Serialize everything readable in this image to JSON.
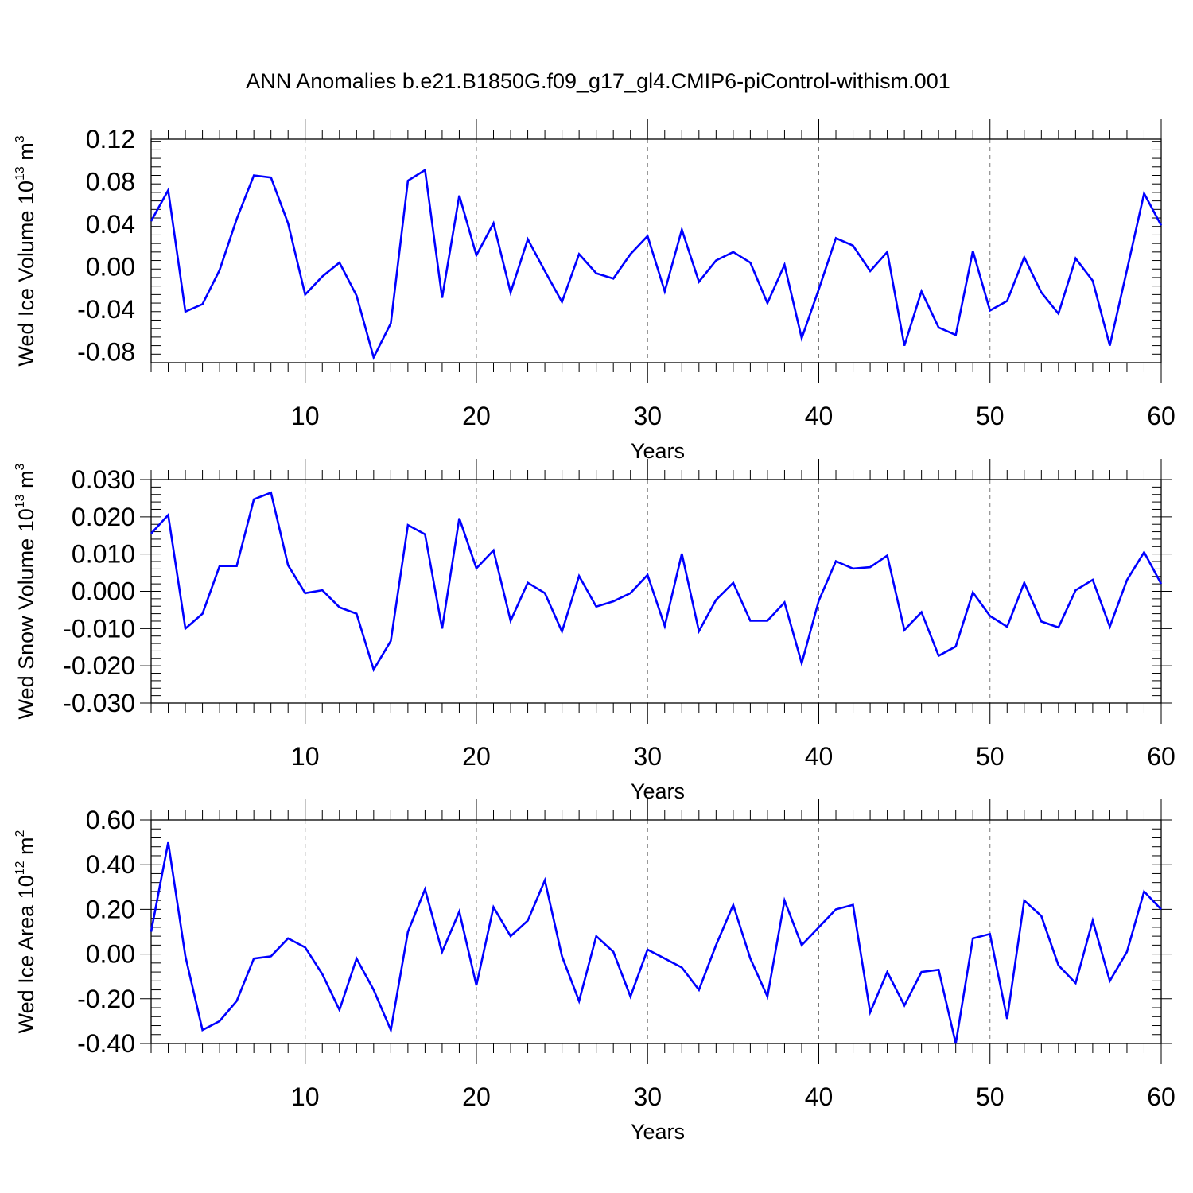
{
  "title": "ANN Anomalies b.e21.B1850G.f09_g17_gl4.CMIP6-piControl-withism.001",
  "line_color": "#0000ff",
  "chart_data": [
    {
      "type": "line",
      "xlabel": "Years",
      "ylabel": {
        "text": "Wed Ice Volume 10",
        "exp": "13",
        "unit": " m",
        "unit_exp": "3"
      },
      "xlim": [
        1,
        60
      ],
      "ylim": [
        -0.09,
        0.12
      ],
      "xticks": [
        10,
        20,
        30,
        40,
        50,
        60
      ],
      "xtick_labels": [
        "10",
        "20",
        "30",
        "40",
        "50",
        "60"
      ],
      "yticks": [
        -0.08,
        -0.04,
        0.0,
        0.04,
        0.08,
        0.12
      ],
      "ytick_labels": [
        "-0.08",
        "-0.04",
        "0.00",
        "0.04",
        "0.08",
        "0.12"
      ],
      "grid": "vertical dashed at x ticks",
      "series": [
        {
          "x": [
            1,
            2,
            3,
            4,
            5,
            6,
            7,
            8,
            9,
            10,
            11,
            12,
            13,
            14,
            15,
            16,
            17,
            18,
            19,
            20,
            21,
            22,
            23,
            24,
            25,
            26,
            27,
            28,
            29,
            30,
            31,
            32,
            33,
            34,
            35,
            36,
            37,
            38,
            39,
            40,
            41,
            42,
            43,
            44,
            45,
            46,
            47,
            48,
            49,
            50,
            51,
            52,
            53,
            54,
            55,
            56,
            57,
            58,
            59,
            60
          ],
          "values": [
            0.043,
            0.072,
            -0.042,
            -0.035,
            -0.003,
            0.045,
            0.086,
            0.084,
            0.041,
            -0.026,
            -0.009,
            0.004,
            -0.027,
            -0.085,
            -0.053,
            0.081,
            0.091,
            -0.029,
            0.067,
            0.011,
            0.041,
            -0.024,
            0.026,
            -0.004,
            -0.033,
            0.012,
            -0.006,
            -0.011,
            0.012,
            0.029,
            -0.023,
            0.035,
            -0.014,
            0.006,
            0.014,
            0.004,
            -0.034,
            0.002,
            -0.067,
            -0.021,
            0.027,
            0.02,
            -0.004,
            0.014,
            -0.074,
            -0.023,
            -0.057,
            -0.064,
            0.015,
            -0.041,
            -0.032,
            0.009,
            -0.024,
            -0.044,
            0.008,
            -0.013,
            -0.074,
            -0.003,
            0.069,
            0.039
          ]
        }
      ]
    },
    {
      "type": "line",
      "xlabel": "Years",
      "ylabel": {
        "text": "Wed Snow Volume 10",
        "exp": "13",
        "unit": " m",
        "unit_exp": "3"
      },
      "xlim": [
        1,
        60
      ],
      "ylim": [
        -0.03,
        0.03
      ],
      "xticks": [
        10,
        20,
        30,
        40,
        50,
        60
      ],
      "xtick_labels": [
        "10",
        "20",
        "30",
        "40",
        "50",
        "60"
      ],
      "yticks": [
        -0.03,
        -0.02,
        -0.01,
        0.0,
        0.01,
        0.02,
        0.03
      ],
      "ytick_labels": [
        "-0.030",
        "-0.020",
        "-0.010",
        "0.000",
        "0.010",
        "0.020",
        "0.030"
      ],
      "grid": "vertical dashed at x ticks",
      "series": [
        {
          "x": [
            1,
            2,
            3,
            4,
            5,
            6,
            7,
            8,
            9,
            10,
            11,
            12,
            13,
            14,
            15,
            16,
            17,
            18,
            19,
            20,
            21,
            22,
            23,
            24,
            25,
            26,
            27,
            28,
            29,
            30,
            31,
            32,
            33,
            34,
            35,
            36,
            37,
            38,
            39,
            40,
            41,
            42,
            43,
            44,
            45,
            46,
            47,
            48,
            49,
            50,
            51,
            52,
            53,
            54,
            55,
            56,
            57,
            58,
            59,
            60
          ],
          "values": [
            0.0155,
            0.0205,
            -0.01,
            -0.006,
            0.0068,
            0.0068,
            0.0247,
            0.0265,
            0.007,
            -0.0005,
            0.0003,
            -0.0043,
            -0.006,
            -0.021,
            -0.0133,
            0.0178,
            0.0153,
            -0.01,
            0.0196,
            0.0062,
            0.011,
            -0.0079,
            0.0023,
            -0.0005,
            -0.0108,
            0.0041,
            -0.0041,
            -0.0027,
            -0.0005,
            0.0044,
            -0.0093,
            0.0101,
            -0.0107,
            -0.0023,
            0.0023,
            -0.0079,
            -0.0079,
            -0.003,
            -0.0193,
            -0.0025,
            0.0081,
            0.0061,
            0.0065,
            0.0096,
            -0.0104,
            -0.0056,
            -0.0173,
            -0.0148,
            -0.0003,
            -0.0066,
            -0.0095,
            0.0023,
            -0.0081,
            -0.0097,
            0.0003,
            0.0031,
            -0.0095,
            0.003,
            0.0105,
            0.002
          ]
        }
      ]
    },
    {
      "type": "line",
      "xlabel": "Years",
      "ylabel": {
        "text": "Wed Ice Area 10",
        "exp": "12",
        "unit": " m",
        "unit_exp": "2"
      },
      "xlim": [
        1,
        60
      ],
      "ylim": [
        -0.4,
        0.6
      ],
      "xticks": [
        10,
        20,
        30,
        40,
        50,
        60
      ],
      "xtick_labels": [
        "10",
        "20",
        "30",
        "40",
        "50",
        "60"
      ],
      "yticks": [
        -0.4,
        -0.2,
        0.0,
        0.2,
        0.4,
        0.6
      ],
      "ytick_labels": [
        "-0.40",
        "-0.20",
        "0.00",
        "0.20",
        "0.40",
        "0.60"
      ],
      "grid": "vertical dashed at x ticks",
      "series": [
        {
          "x": [
            1,
            2,
            3,
            4,
            5,
            6,
            7,
            8,
            9,
            10,
            11,
            12,
            13,
            14,
            15,
            16,
            17,
            18,
            19,
            20,
            21,
            22,
            23,
            24,
            25,
            26,
            27,
            28,
            29,
            30,
            31,
            32,
            33,
            34,
            35,
            36,
            37,
            38,
            39,
            40,
            41,
            42,
            43,
            44,
            45,
            46,
            47,
            48,
            49,
            50,
            51,
            52,
            53,
            54,
            55,
            56,
            57,
            58,
            59,
            60
          ],
          "values": [
            0.1,
            0.5,
            -0.01,
            -0.34,
            -0.3,
            -0.21,
            -0.02,
            -0.01,
            0.07,
            0.03,
            -0.09,
            -0.25,
            -0.02,
            -0.16,
            -0.34,
            0.1,
            0.29,
            0.01,
            0.19,
            -0.14,
            0.21,
            0.08,
            0.15,
            0.33,
            -0.01,
            -0.21,
            0.08,
            0.01,
            -0.19,
            0.02,
            -0.02,
            -0.06,
            -0.16,
            0.04,
            0.22,
            -0.02,
            -0.19,
            0.24,
            0.04,
            0.12,
            0.2,
            0.22,
            -0.26,
            -0.08,
            -0.23,
            -0.08,
            -0.07,
            -0.4,
            0.07,
            0.09,
            -0.29,
            0.24,
            0.17,
            -0.05,
            -0.13,
            0.15,
            -0.12,
            0.01,
            0.28,
            0.2
          ]
        }
      ]
    }
  ]
}
